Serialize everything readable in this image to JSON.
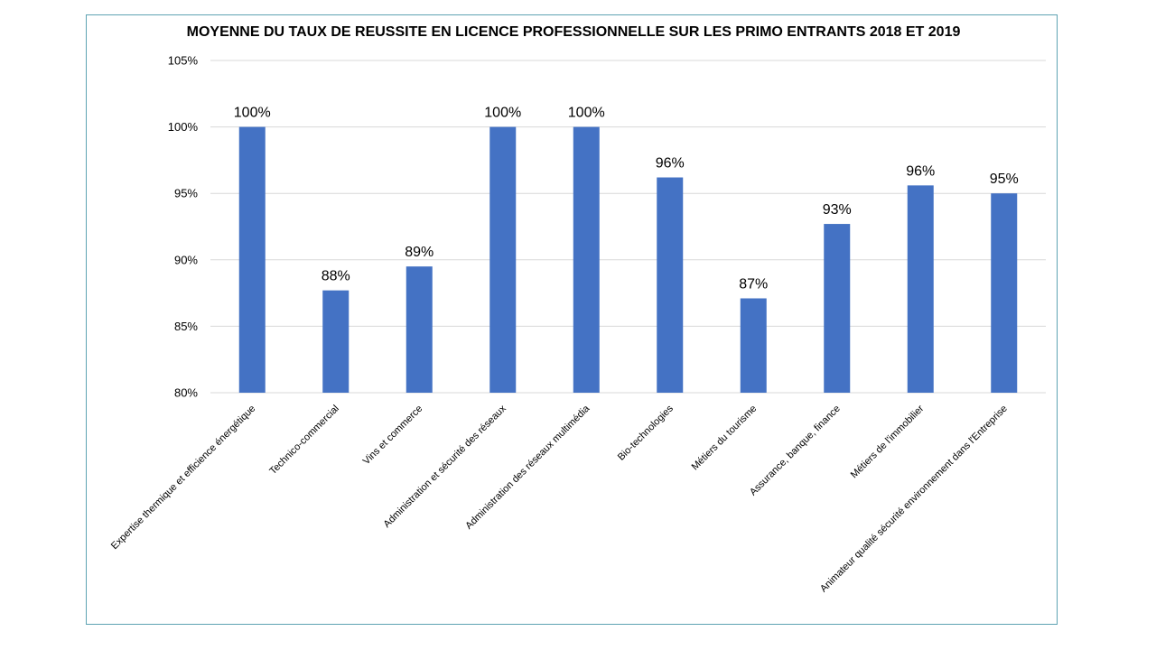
{
  "chart_data": {
    "type": "bar",
    "title": "MOYENNE DU TAUX DE REUSSITE EN LICENCE PROFESSIONNELLE SUR LES PRIMO ENTRANTS 2018  ET 2019",
    "categories": [
      "Expertise thermique et efficience énergétique",
      "Technico-commercial",
      "Vins et commerce",
      "Administration et sécurité des réseaux",
      "Administration des réseaux multimédia",
      "Bio-technologies",
      "Métiers du tourisme",
      "Assurance, banque, finance",
      "Métiers de l'immobilier",
      "Animateur qualité sécurité environnement dans l'Entreprise"
    ],
    "values": [
      100,
      87.7,
      89.5,
      100,
      100,
      96.2,
      87.1,
      92.7,
      95.6,
      95.0
    ],
    "data_labels": [
      "100%",
      "88%",
      "89%",
      "100%",
      "100%",
      "96%",
      "87%",
      "93%",
      "96%",
      "95%"
    ],
    "yticks": [
      80,
      85,
      90,
      95,
      100,
      105
    ],
    "ytick_labels": [
      "80%",
      "85%",
      "90%",
      "95%",
      "100%",
      "105%"
    ],
    "ylim": [
      80,
      105
    ],
    "xlabel": "",
    "ylabel": "",
    "grid": true,
    "legend": "none",
    "colors": {
      "bar": "#4472c4",
      "grid": "#d9d9d9",
      "frame": "#5ea3b3"
    }
  }
}
